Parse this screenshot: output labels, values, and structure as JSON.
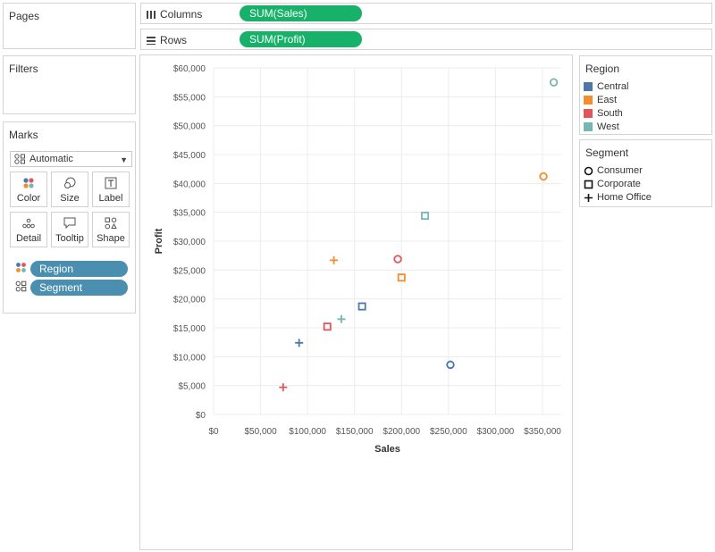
{
  "pages": {
    "title": "Pages"
  },
  "filters": {
    "title": "Filters"
  },
  "marks": {
    "title": "Marks",
    "mark_type": "Automatic",
    "buttons": {
      "color": "Color",
      "size": "Size",
      "label": "Label",
      "detail": "Detail",
      "tooltip": "Tooltip",
      "shape": "Shape"
    },
    "pills": {
      "region": "Region",
      "segment": "Segment"
    }
  },
  "shelves": {
    "columns": {
      "label": "Columns",
      "pill": "SUM(Sales)"
    },
    "rows": {
      "label": "Rows",
      "pill": "SUM(Profit)"
    }
  },
  "colors": {
    "Central": "#4e79a7",
    "East": "#f28e2b",
    "South": "#e15759",
    "West": "#76b7b2",
    "pill_green": "#17b169",
    "pill_blue": "#4a8fb0"
  },
  "legends": {
    "region": {
      "title": "Region",
      "items": [
        "Central",
        "East",
        "South",
        "West"
      ]
    },
    "segment": {
      "title": "Segment",
      "items": [
        "Consumer",
        "Corporate",
        "Home Office"
      ]
    }
  },
  "chart_data": {
    "type": "scatter",
    "xlabel": "Sales",
    "ylabel": "Profit",
    "xlim": [
      0,
      370000
    ],
    "ylim": [
      0,
      60000
    ],
    "xticks": [
      "$0",
      "$50,000",
      "$100,000",
      "$150,000",
      "$200,000",
      "$250,000",
      "$300,000",
      "$350,000"
    ],
    "yticks": [
      "$0",
      "$5,000",
      "$10,000",
      "$15,000",
      "$20,000",
      "$25,000",
      "$30,000",
      "$35,000",
      "$40,000",
      "$45,000",
      "$50,000",
      "$55,000",
      "$60,000"
    ],
    "grid": true,
    "points": [
      {
        "region": "Central",
        "segment": "Consumer",
        "x": 252000,
        "y": 8600
      },
      {
        "region": "Central",
        "segment": "Corporate",
        "x": 158000,
        "y": 18700
      },
      {
        "region": "Central",
        "segment": "Home Office",
        "x": 91000,
        "y": 12400
      },
      {
        "region": "East",
        "segment": "Consumer",
        "x": 351000,
        "y": 41200
      },
      {
        "region": "East",
        "segment": "Corporate",
        "x": 200000,
        "y": 23700
      },
      {
        "region": "East",
        "segment": "Home Office",
        "x": 128000,
        "y": 26700
      },
      {
        "region": "South",
        "segment": "Consumer",
        "x": 196000,
        "y": 26900
      },
      {
        "region": "South",
        "segment": "Corporate",
        "x": 121000,
        "y": 15200
      },
      {
        "region": "South",
        "segment": "Home Office",
        "x": 74000,
        "y": 4700
      },
      {
        "region": "West",
        "segment": "Consumer",
        "x": 362000,
        "y": 57500
      },
      {
        "region": "West",
        "segment": "Corporate",
        "x": 225000,
        "y": 34400
      },
      {
        "region": "West",
        "segment": "Home Office",
        "x": 136000,
        "y": 16500
      }
    ]
  }
}
